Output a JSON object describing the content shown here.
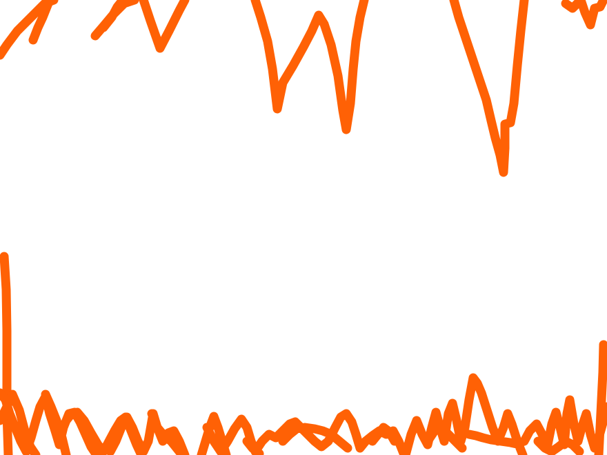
{
  "drawing": {
    "background": "#ffffff",
    "stroke_color": "#ff6105",
    "strokes": [
      "top-zigzag-left",
      "top-zigzag-center",
      "top-zigzag-right",
      "top-right-scribble",
      "bottom-scribble-band",
      "left-vertical-stroke",
      "right-vertical-stroke"
    ]
  }
}
